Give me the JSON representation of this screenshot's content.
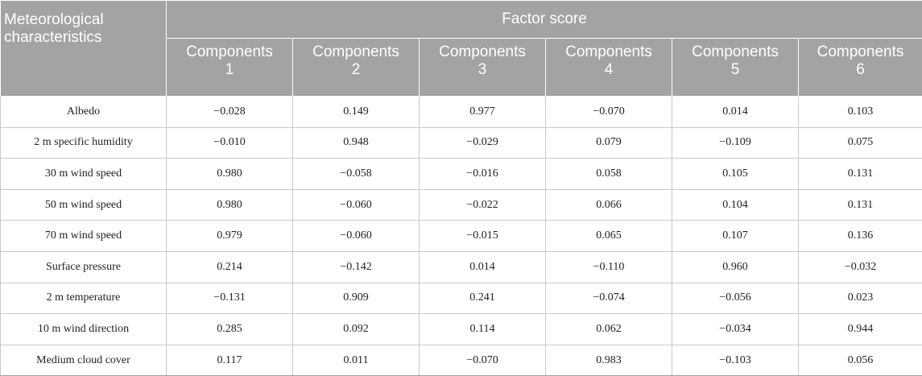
{
  "table": {
    "corner_header": "Meteorological characteristics",
    "group_header": "Factor score",
    "component_headers": [
      {
        "line1": "Components",
        "line2": "1"
      },
      {
        "line1": "Components",
        "line2": "2"
      },
      {
        "line1": "Components",
        "line2": "3"
      },
      {
        "line1": "Components",
        "line2": "4"
      },
      {
        "line1": "Components",
        "line2": "5"
      },
      {
        "line1": "Components",
        "line2": "6"
      }
    ],
    "rows": [
      {
        "label": "Albedo",
        "values": [
          "−0.028",
          "0.149",
          "0.977",
          "−0.070",
          "0.014",
          "0.103"
        ]
      },
      {
        "label": "2 m specific humidity",
        "values": [
          "−0.010",
          "0.948",
          "−0.029",
          "0.079",
          "−0.109",
          "0.075"
        ]
      },
      {
        "label": "30 m wind speed",
        "values": [
          "0.980",
          "−0.058",
          "−0.016",
          "0.058",
          "0.105",
          "0.131"
        ]
      },
      {
        "label": "50 m wind speed",
        "values": [
          "0.980",
          "−0.060",
          "−0.022",
          "0.066",
          "0.104",
          "0.131"
        ]
      },
      {
        "label": "70 m wind speed",
        "values": [
          "0.979",
          "−0.060",
          "−0.015",
          "0.065",
          "0.107",
          "0.136"
        ]
      },
      {
        "label": "Surface pressure",
        "values": [
          "0.214",
          "−0.142",
          "0.014",
          "−0.110",
          "0.960",
          "−0.032"
        ]
      },
      {
        "label": "2 m temperature",
        "values": [
          "−0.131",
          "0.909",
          "0.241",
          "−0.074",
          "−0.056",
          "0.023"
        ]
      },
      {
        "label": "10 m wind direction",
        "values": [
          "0.285",
          "0.092",
          "0.114",
          "0.062",
          "−0.034",
          "0.944"
        ]
      },
      {
        "label": "Medium cloud cover",
        "values": [
          "0.117",
          "0.011",
          "−0.070",
          "0.983",
          "−0.103",
          "0.056"
        ]
      }
    ]
  }
}
